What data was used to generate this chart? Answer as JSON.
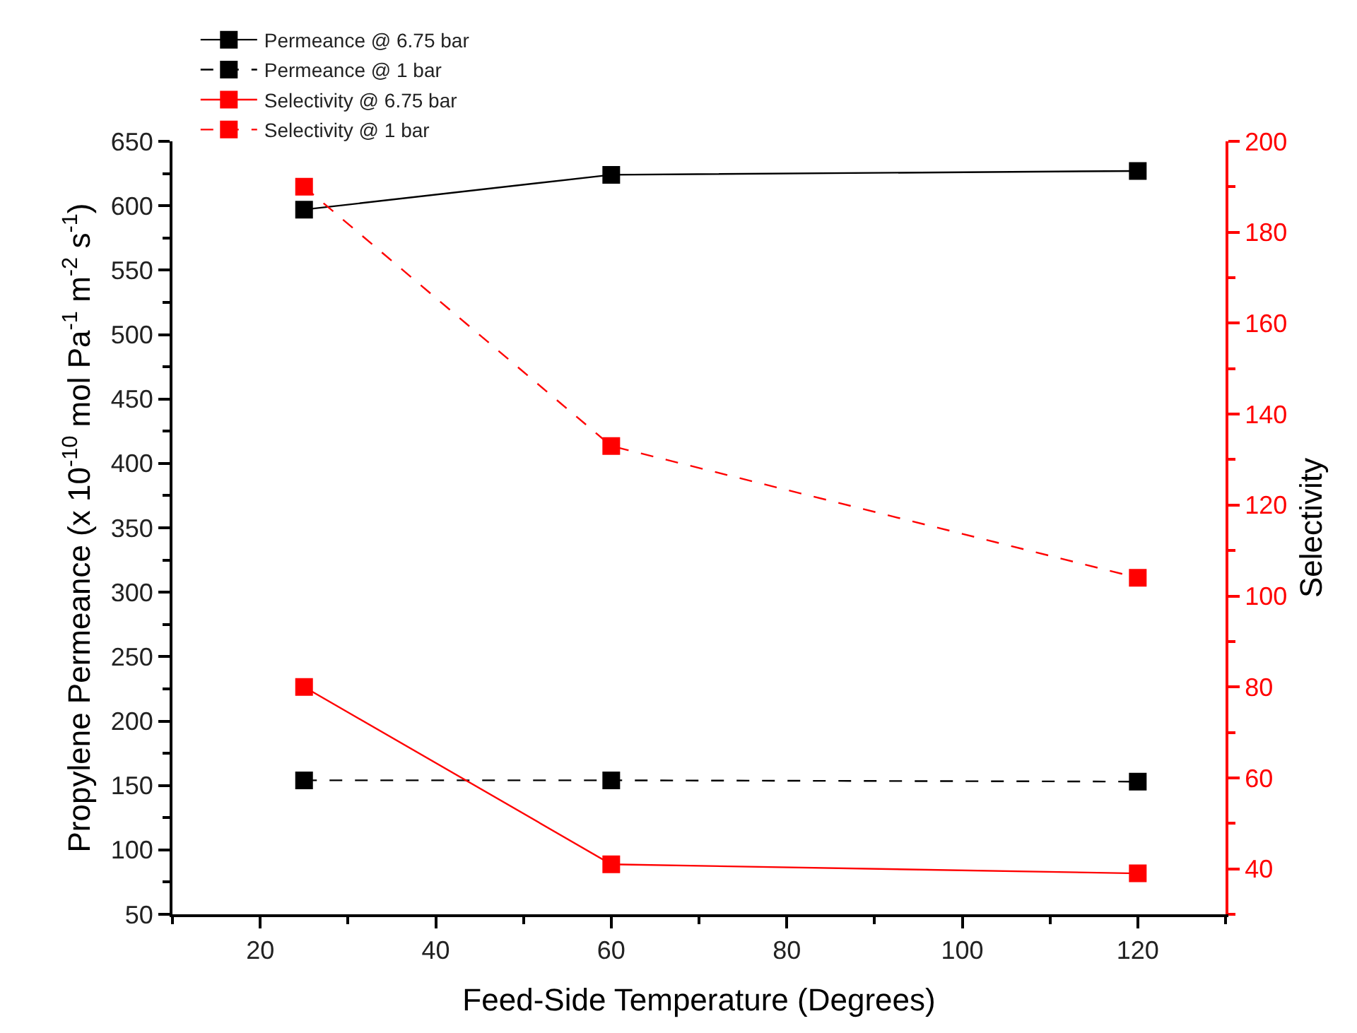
{
  "chart_data": {
    "type": "line",
    "xlabel": "Feed-Side Temperature (Degrees)",
    "ylabel": "Propylene Permeance (x 10$^{-10}$ mol Pa$^{-1}$ m$^{-2}$ s$^{-1}$)",
    "y2label": "Selectivity",
    "x": [
      25,
      60,
      120
    ],
    "series": [
      {
        "name": "Permeance @ 6.75 bar",
        "color": "#000000",
        "values": [
          597,
          624,
          627
        ],
        "line_style": "solid"
      },
      {
        "name": "Permeance @ 1 bar",
        "color": "#000000",
        "values": [
          154,
          154,
          153
        ],
        "line_style": "dashed"
      },
      {
        "name": "Selectivity @ 6.75 bar",
        "color": "#ff0000",
        "values": [
          80,
          41,
          39
        ],
        "line_style": "solid",
        "axis": "y2"
      },
      {
        "name": "Selectivity @ 1 bar",
        "color": "#ff0000",
        "values": [
          190,
          133,
          104
        ],
        "line_style": "dashed",
        "axis": "y2"
      }
    ],
    "xlim": [
      10,
      130
    ],
    "xticks": [
      20,
      40,
      60,
      80,
      100,
      120
    ],
    "ylim": [
      50,
      650
    ],
    "yticks": [
      50,
      100,
      150,
      200,
      250,
      300,
      350,
      400,
      450,
      500,
      550,
      600,
      650
    ],
    "y2lim": [
      30,
      200
    ],
    "y2ticks": [
      40,
      60,
      80,
      100,
      120,
      140,
      160,
      180,
      200
    ],
    "grid": false,
    "legend": "top left",
    "marker": "square"
  }
}
